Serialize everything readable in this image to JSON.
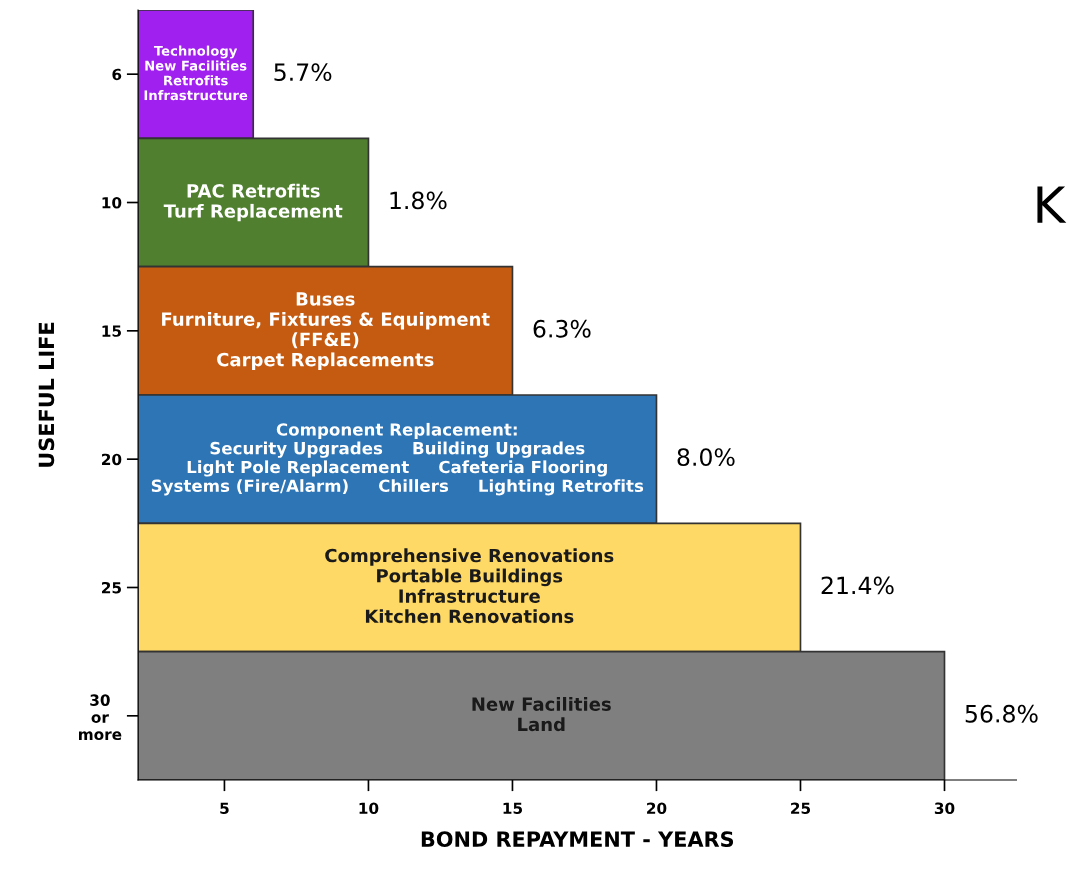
{
  "chart_data": {
    "type": "bar",
    "orientation": "horizontal",
    "categories": [
      "6",
      "10",
      "15",
      "20",
      "25",
      "30\nor\nmore"
    ],
    "base": [
      2,
      2,
      2,
      2,
      2,
      2
    ],
    "values": [
      4,
      8,
      13,
      18,
      23,
      28
    ],
    "colors": [
      "#a020f0",
      "#4f7f2f",
      "#c55a11",
      "#2e75b6",
      "#ffd966",
      "#7f7f7f"
    ],
    "xlim": [
      2,
      32.5
    ],
    "xticks": [
      5,
      10,
      15,
      20,
      25,
      30
    ],
    "xlabel": "BOND REPAYMENT - YEARS",
    "ylabel": "USEFUL LIFE",
    "grid": false,
    "annotations": [
      "Technology\nNew Facilities\nRetrofits\nInfrastructure",
      "PAC Retrofits\nTurf Replacement",
      "Buses\nFurniture, Fixtures & Equipment\n(FF&E)\nCarpet Replacements",
      "Component Replacement:\nSecurity Upgrades     Building Upgrades\nLight Pole Replacement     Cafeteria Flooring\nSystems (Fire/Alarm)     Chillers     Lighting Retrofits",
      "Comprehensive Renovations\nPortable Buildings\nInfrastructure\nKitchen Renovations",
      "New Facilities\nLand",
      {
        "text": "5.7%",
        "x": 6,
        "y": "6"
      },
      {
        "text": "1.8%",
        "x": 10,
        "y": "10"
      },
      {
        "text": "6.3%",
        "x": 15,
        "y": "15"
      },
      {
        "text": "8.0%",
        "x": 20,
        "y": "20"
      },
      {
        "text": "21.4%",
        "x": 25,
        "y": "25"
      },
      {
        "text": "56.8%",
        "x": 30,
        "y": "30\nor\nmore"
      },
      "K"
    ]
  }
}
